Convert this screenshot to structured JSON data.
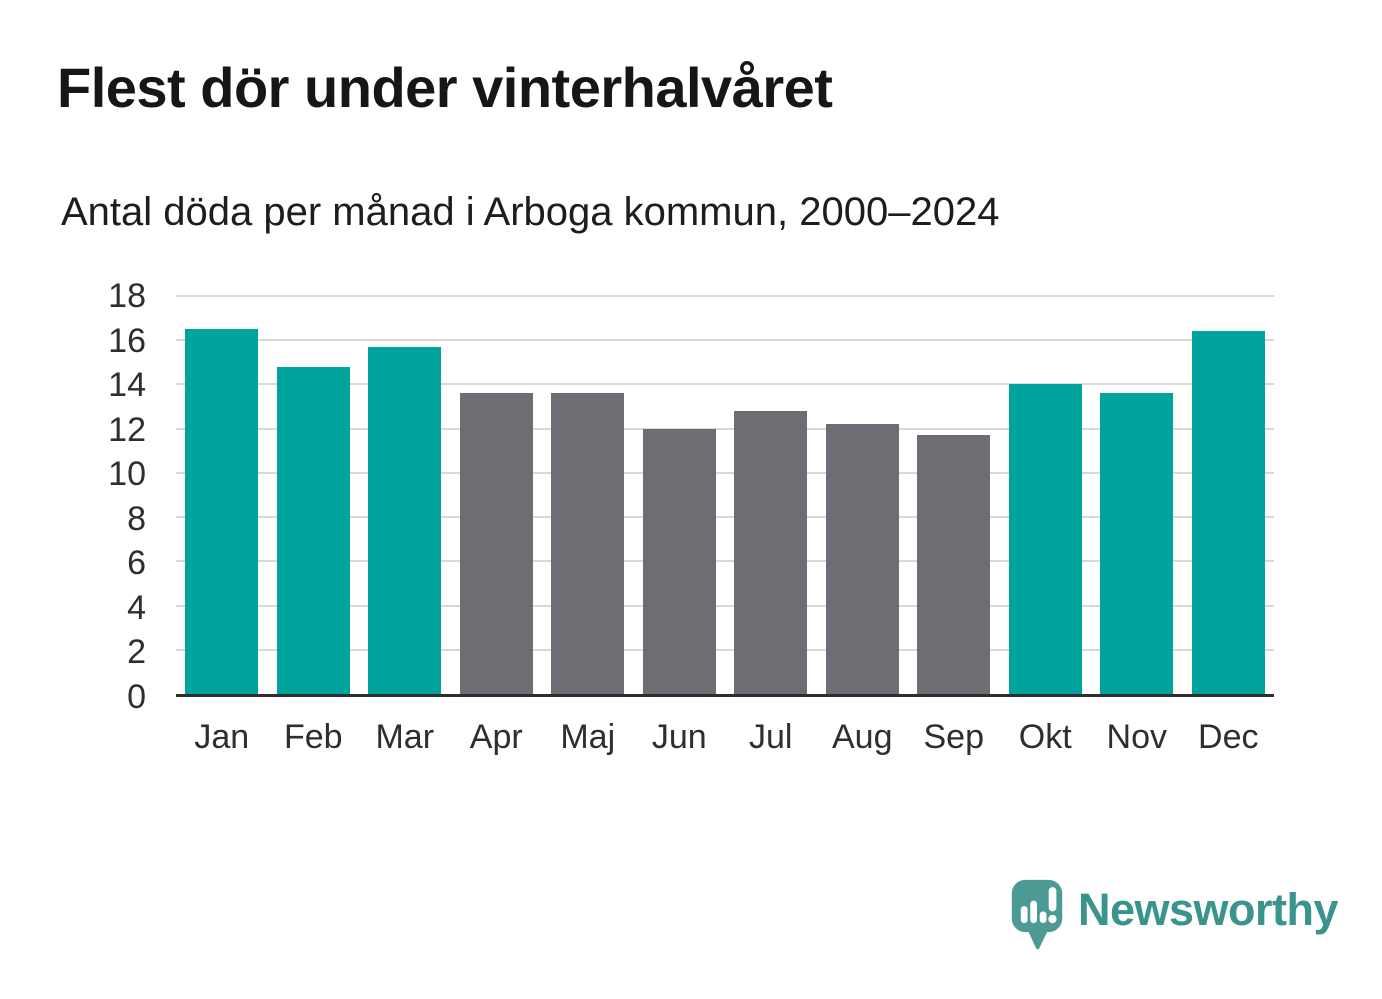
{
  "title": "Flest dör under vinterhalvåret",
  "subtitle": "Antal döda per månad i Arboga kommun, 2000–2024",
  "colors": {
    "winter_bar": "#00a49c",
    "summer_bar": "#6e6d73",
    "gridline": "#d9d9d9",
    "axis_line": "#2e2e2e",
    "title_text": "#161616",
    "tick_text": "#2e2e2e",
    "logo_icon": "#4c9a94",
    "logo_text": "#38948d"
  },
  "chart_data": {
    "type": "bar",
    "title": "Flest dör under vinterhalvåret",
    "subtitle": "Antal döda per månad i Arboga kommun, 2000–2024",
    "categories": [
      "Jan",
      "Feb",
      "Mar",
      "Apr",
      "Maj",
      "Jun",
      "Jul",
      "Aug",
      "Sep",
      "Okt",
      "Nov",
      "Dec"
    ],
    "values": [
      16.5,
      14.8,
      15.7,
      13.6,
      13.6,
      12.0,
      12.8,
      12.2,
      11.7,
      14.0,
      13.6,
      16.4
    ],
    "bar_groups": [
      "winter",
      "winter",
      "winter",
      "summer",
      "summer",
      "summer",
      "summer",
      "summer",
      "summer",
      "winter",
      "winter",
      "winter"
    ],
    "group_colors": {
      "winter": "#00a49c",
      "summer": "#6e6d73"
    },
    "xlabel": "",
    "ylabel": "",
    "ylim": [
      0,
      18
    ],
    "yticks": [
      0,
      2,
      4,
      6,
      8,
      10,
      12,
      14,
      16,
      18
    ],
    "grid": true,
    "legend": false
  },
  "logo": {
    "text": "Newsworthy",
    "icon": "newsworthy-speech-bubble-bar-chart-icon"
  }
}
